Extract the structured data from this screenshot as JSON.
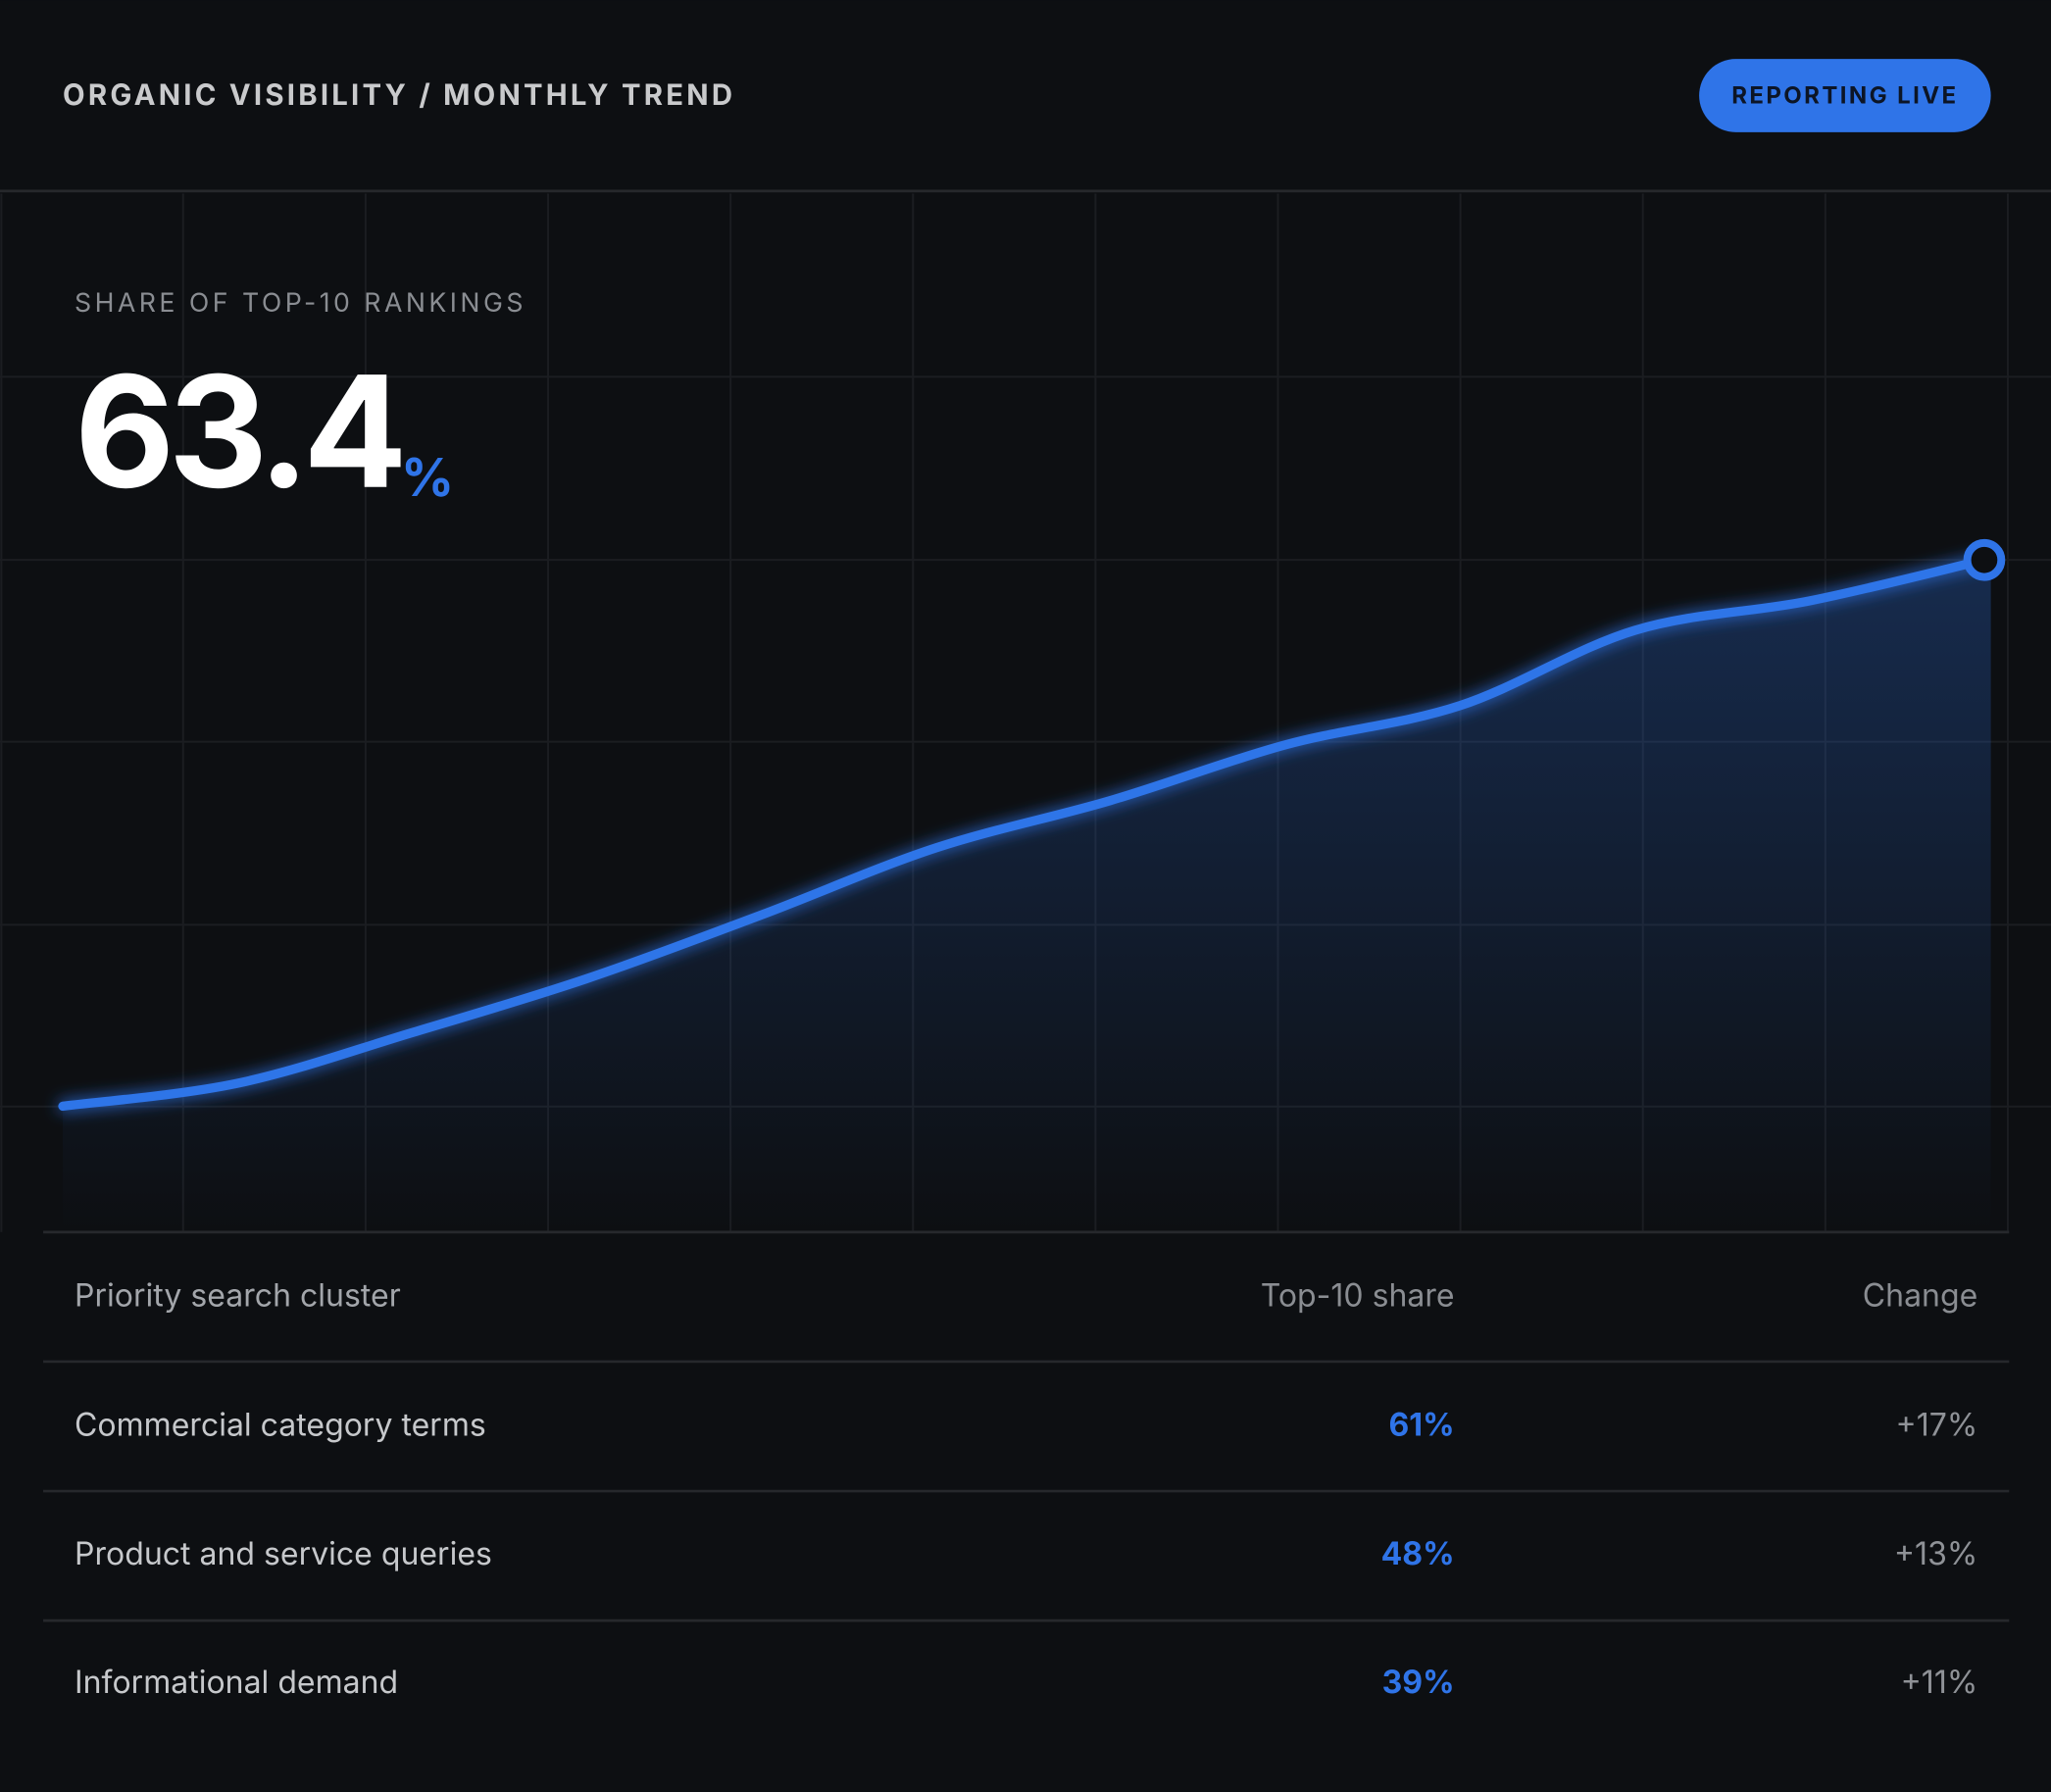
{
  "header": {
    "title": "ORGANIC VISIBILITY / MONTHLY TREND",
    "badge": "REPORTING LIVE"
  },
  "hero": {
    "label": "SHARE OF TOP-10 RANKINGS",
    "value": "63.4",
    "unit": "%"
  },
  "chart_data": {
    "type": "line",
    "values": [
      30,
      31.4,
      34.5,
      37.8,
      41.7,
      45.8,
      48.7,
      52.1,
      54.5,
      59.1,
      60.9,
      63.4
    ],
    "color": "#2f74e8",
    "ylim": [
      22.3,
      85.8
    ]
  },
  "table": {
    "columns": [
      "Priority search cluster",
      "Top-10 share",
      "Change"
    ],
    "rows": [
      [
        "Commercial category terms",
        "61%",
        "+17%"
      ],
      [
        "Product and service queries",
        "48%",
        "+13%"
      ],
      [
        "Informational demand",
        "39%",
        "+11%"
      ]
    ]
  }
}
